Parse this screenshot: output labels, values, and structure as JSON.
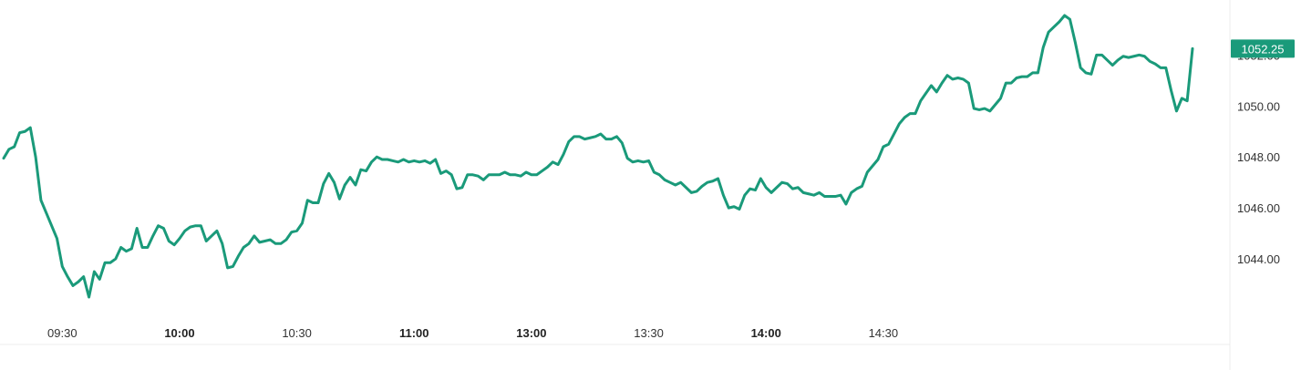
{
  "chart_data": {
    "type": "line",
    "title": "",
    "xlabel": "",
    "ylabel": "",
    "ylim": [
      1042.0,
      1053.8
    ],
    "grid": false,
    "line_color": "#1a9a7a",
    "price_tag_color": "#1a9a7a",
    "y_ticks": [
      "1044.00",
      "1046.00",
      "1048.00",
      "1050.00",
      "1052.00"
    ],
    "y_tick_values": [
      1044,
      1046,
      1048,
      1050,
      1052
    ],
    "x_ticks": [
      {
        "label": "09:30",
        "index": 11,
        "major": false
      },
      {
        "label": "10:00",
        "index": 33,
        "major": true
      },
      {
        "label": "10:30",
        "index": 55,
        "major": false
      },
      {
        "label": "11:00",
        "index": 77,
        "major": true
      },
      {
        "label": "13:00",
        "index": 99,
        "major": true
      },
      {
        "label": "13:30",
        "index": 121,
        "major": false
      },
      {
        "label": "14:00",
        "index": 143,
        "major": true
      },
      {
        "label": "14:30",
        "index": 165,
        "major": false
      }
    ],
    "last_price": "1052.25",
    "series": [
      {
        "values": [
          1047.95,
          1048.3,
          1048.4,
          1048.95,
          1049.0,
          1049.15,
          1048.0,
          1046.3,
          1045.8,
          1045.3,
          1044.8,
          1043.7,
          1043.3,
          1042.95,
          1043.1,
          1043.3,
          1042.5,
          1043.5,
          1043.2,
          1043.85,
          1043.85,
          1044.0,
          1044.45,
          1044.3,
          1044.4,
          1045.2,
          1044.45,
          1044.45,
          1044.9,
          1045.3,
          1045.2,
          1044.7,
          1044.55,
          1044.8,
          1045.1,
          1045.25,
          1045.3,
          1045.3,
          1044.7,
          1044.9,
          1045.1,
          1044.6,
          1043.65,
          1043.7,
          1044.1,
          1044.45,
          1044.6,
          1044.9,
          1044.65,
          1044.7,
          1044.75,
          1044.6,
          1044.6,
          1044.75,
          1045.05,
          1045.1,
          1045.4,
          1046.3,
          1046.2,
          1046.2,
          1046.95,
          1047.35,
          1047.0,
          1046.35,
          1046.9,
          1047.2,
          1046.9,
          1047.5,
          1047.45,
          1047.8,
          1048.0,
          1047.9,
          1047.9,
          1047.85,
          1047.8,
          1047.9,
          1047.8,
          1047.85,
          1047.8,
          1047.85,
          1047.75,
          1047.9,
          1047.35,
          1047.45,
          1047.3,
          1046.75,
          1046.8,
          1047.3,
          1047.3,
          1047.25,
          1047.1,
          1047.3,
          1047.3,
          1047.3,
          1047.4,
          1047.3,
          1047.3,
          1047.25,
          1047.4,
          1047.3,
          1047.3,
          1047.45,
          1047.6,
          1047.8,
          1047.7,
          1048.1,
          1048.6,
          1048.8,
          1048.8,
          1048.7,
          1048.75,
          1048.8,
          1048.9,
          1048.7,
          1048.7,
          1048.8,
          1048.55,
          1047.95,
          1047.8,
          1047.85,
          1047.8,
          1047.85,
          1047.4,
          1047.3,
          1047.1,
          1047.0,
          1046.9,
          1047.0,
          1046.8,
          1046.6,
          1046.65,
          1046.85,
          1047.0,
          1047.05,
          1047.15,
          1046.5,
          1046.0,
          1046.05,
          1045.95,
          1046.5,
          1046.75,
          1046.7,
          1047.15,
          1046.8,
          1046.6,
          1046.8,
          1047.0,
          1046.95,
          1046.75,
          1046.8,
          1046.6,
          1046.55,
          1046.5,
          1046.6,
          1046.45,
          1046.45,
          1046.45,
          1046.5,
          1046.15,
          1046.6,
          1046.75,
          1046.85,
          1047.4,
          1047.65,
          1047.9,
          1048.4,
          1048.5,
          1048.9,
          1049.3,
          1049.55,
          1049.7,
          1049.7,
          1050.2,
          1050.5,
          1050.8,
          1050.55,
          1050.9,
          1051.2,
          1051.05,
          1051.1,
          1051.05,
          1050.9,
          1049.9,
          1049.85,
          1049.9,
          1049.8,
          1050.05,
          1050.3,
          1050.9,
          1050.9,
          1051.1,
          1051.15,
          1051.15,
          1051.3,
          1051.3,
          1052.3,
          1052.9,
          1053.1,
          1053.3,
          1053.55,
          1053.4,
          1052.5,
          1051.5,
          1051.3,
          1051.25,
          1052.0,
          1052.0,
          1051.8,
          1051.6,
          1051.8,
          1051.95,
          1051.9,
          1051.95,
          1052.0,
          1051.95,
          1051.75,
          1051.65,
          1051.5,
          1051.5,
          1050.6,
          1049.8,
          1050.3,
          1050.2,
          1052.25
        ]
      }
    ]
  }
}
